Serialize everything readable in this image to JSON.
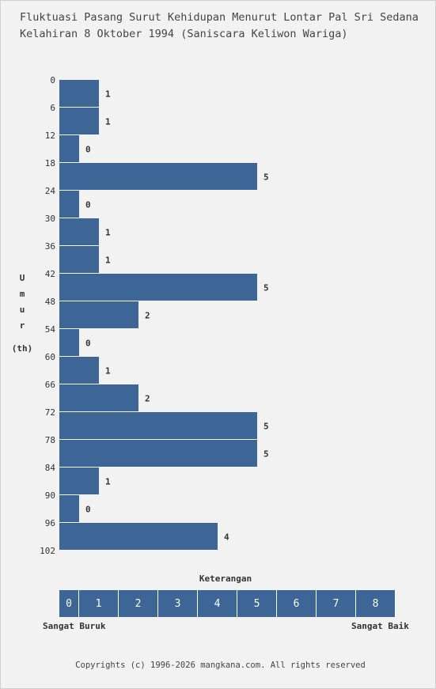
{
  "title_line1": "Fluktuasi Pasang Surut Kehidupan Menurut Lontar Pal Sri Sedana",
  "title_line2": "Kelahiran 8 Oktober 1994 (Saniscara Keliwon Wariga)",
  "y_axis_label_letters": [
    "U",
    "m",
    "u",
    "r"
  ],
  "y_axis_unit": "(th)",
  "chart_data": {
    "type": "bar",
    "orientation": "horizontal",
    "title": "Fluktuasi Pasang Surut Kehidupan Menurut Lontar Pal Sri Sedana Kelahiran 8 Oktober 1994 (Saniscara Keliwon Wariga)",
    "ylabel": "Umur (th)",
    "y_ticks": [
      0,
      6,
      12,
      18,
      24,
      30,
      36,
      42,
      48,
      54,
      60,
      66,
      72,
      78,
      84,
      90,
      96,
      102
    ],
    "values": [
      1,
      1,
      0,
      5,
      0,
      1,
      1,
      5,
      2,
      0,
      1,
      2,
      5,
      5,
      1,
      0,
      4
    ],
    "xlim": [
      0,
      8
    ],
    "bar_color": "#3d6596"
  },
  "legend": {
    "title": "Keterangan",
    "scale": [
      "0",
      "1",
      "2",
      "3",
      "4",
      "5",
      "6",
      "7",
      "8"
    ],
    "low_label": "Sangat Buruk",
    "high_label": "Sangat Baik",
    "color": "#3d6596"
  },
  "copyright": "Copyrights (c) 1996-2026 mangkana.com. All rights reserved"
}
